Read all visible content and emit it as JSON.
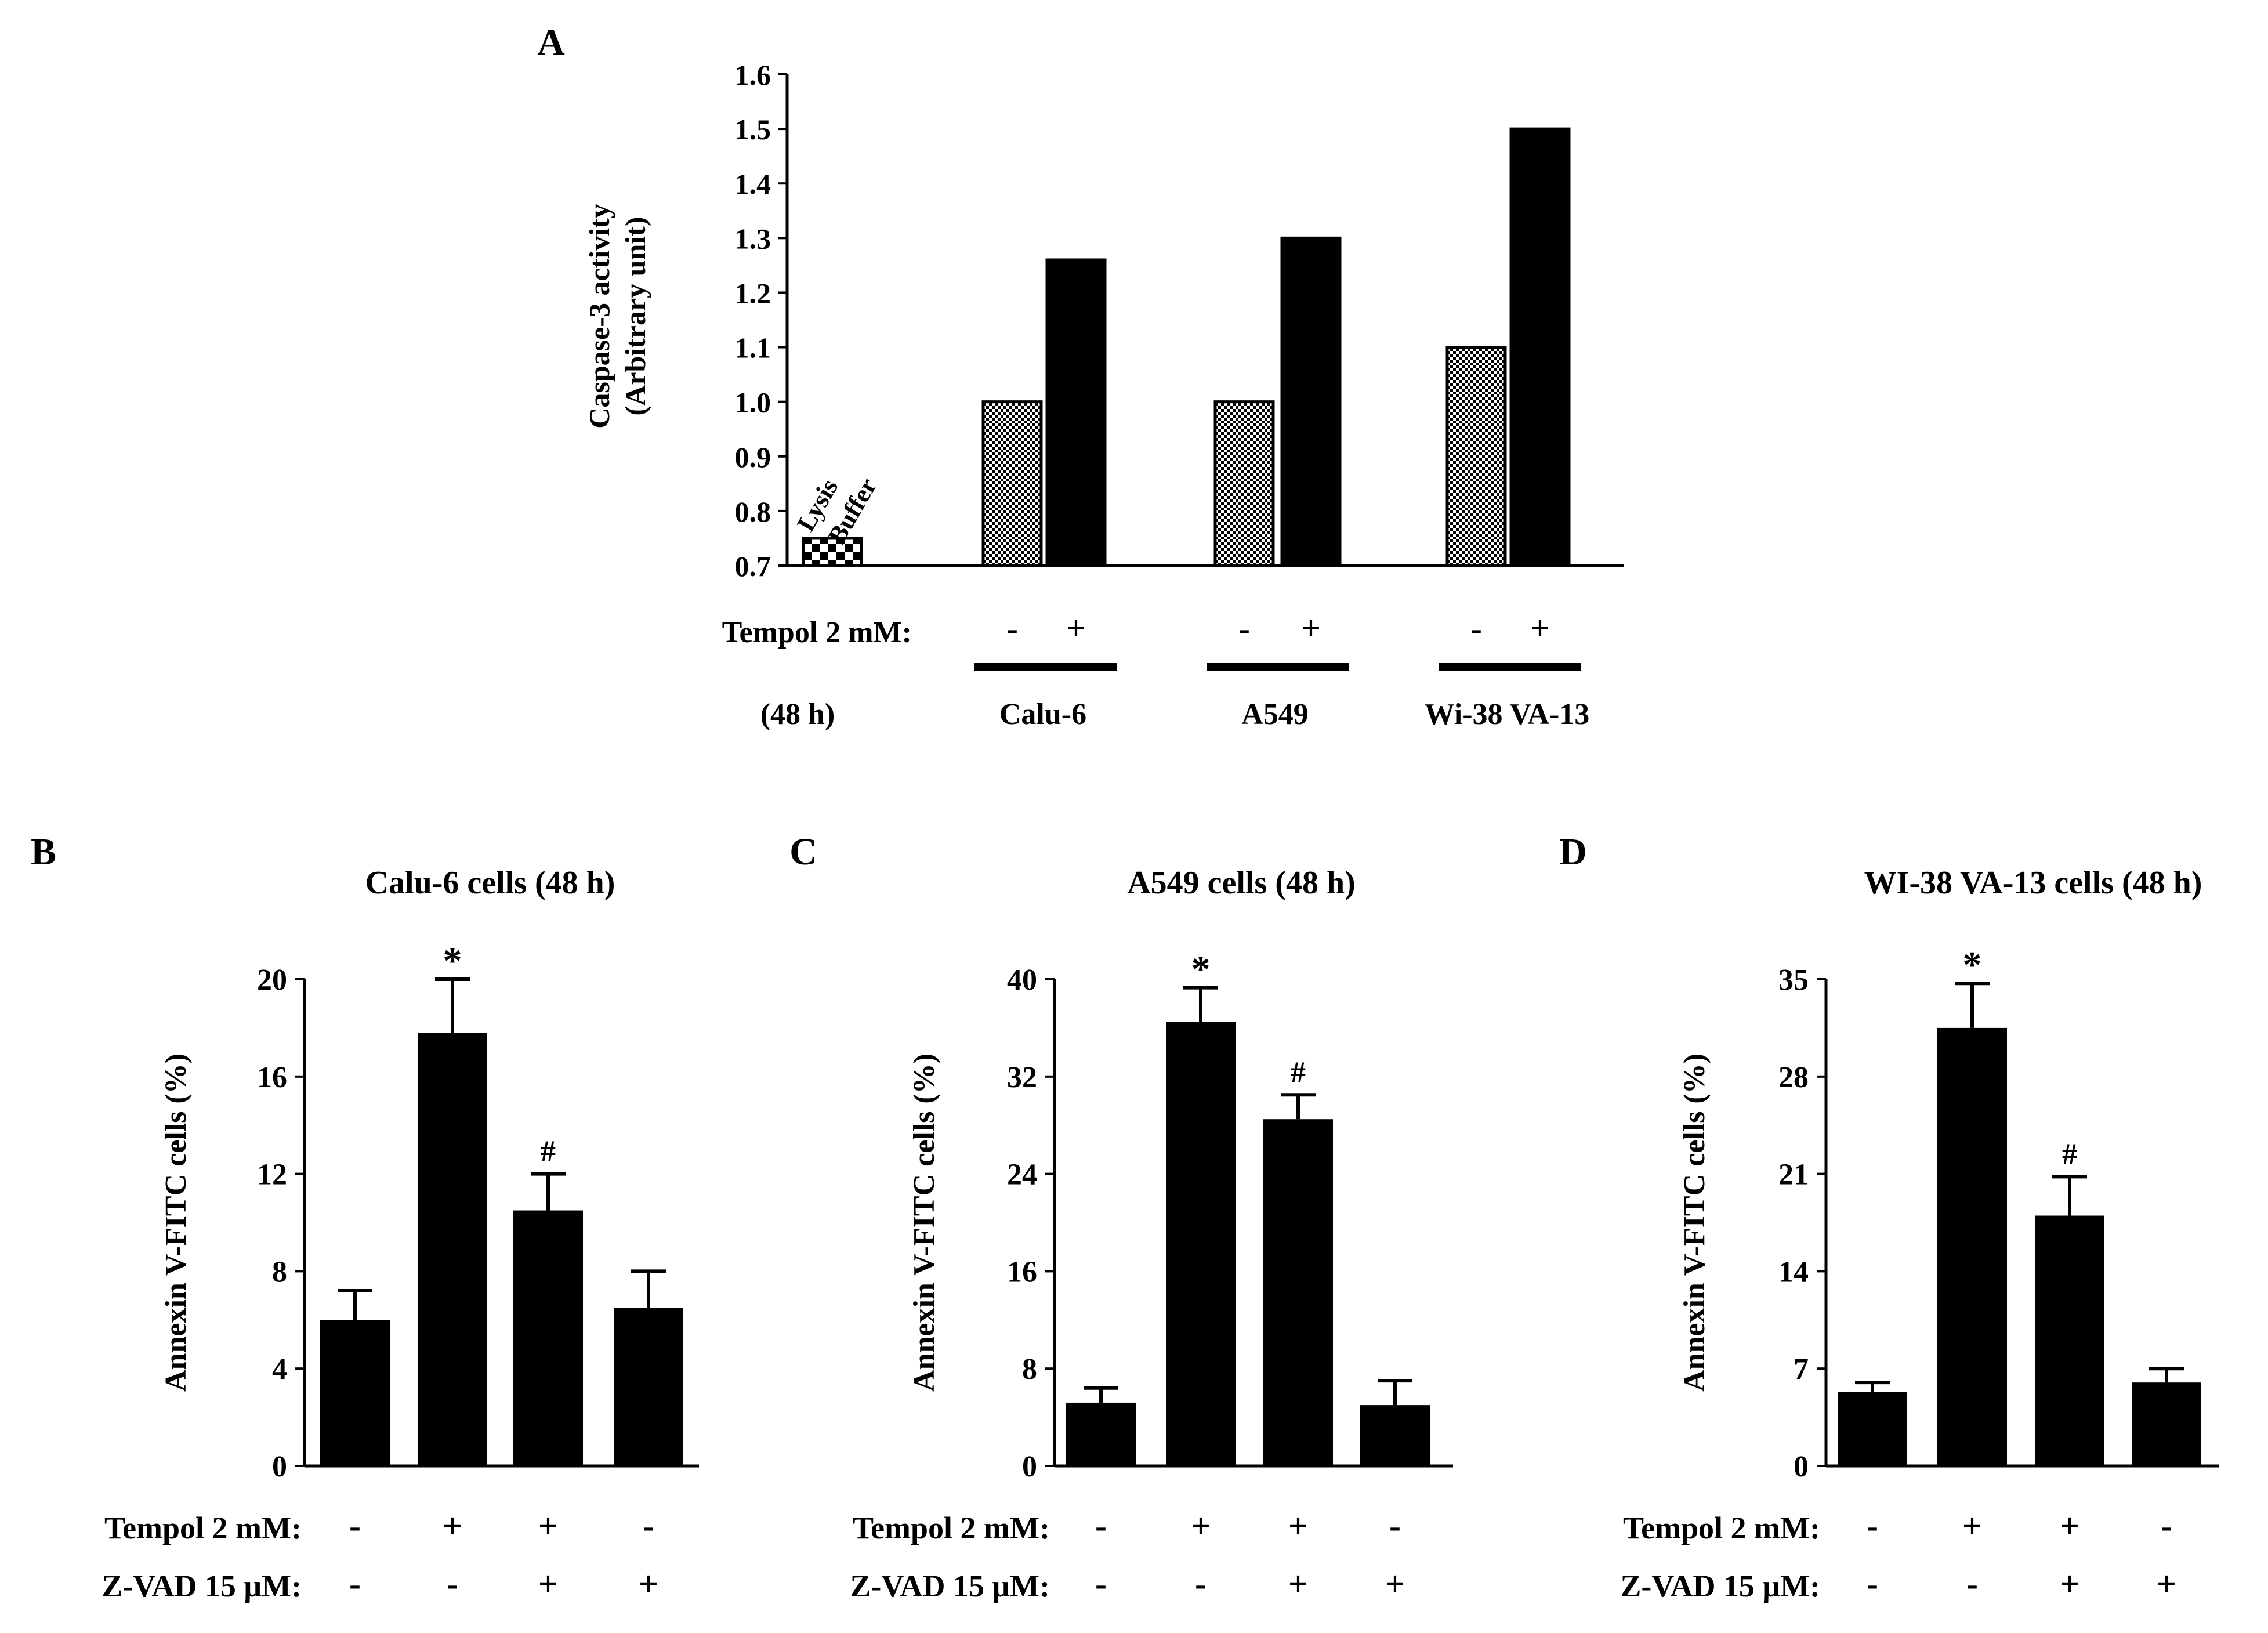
{
  "colors": {
    "bar": "#000000",
    "pattern_light": "#ffffff",
    "text": "#000000"
  },
  "chart_data": [
    {
      "id": "A",
      "panel_label": "A",
      "type": "bar",
      "title": "",
      "ylabel_lines": [
        "Caspase-3 activity",
        "(Arbitrary unit)"
      ],
      "ylim": [
        0.7,
        1.6
      ],
      "yticks": [
        "0.7",
        "0.8",
        "0.9",
        "1.0",
        "1.1",
        "1.2",
        "1.3",
        "1.4",
        "1.5",
        "1.6"
      ],
      "bar_label_lines": [
        "Lysis",
        "Buffer"
      ],
      "bars": [
        {
          "group": "Lysis Buffer",
          "tempol": "",
          "value": 0.75,
          "pattern": "checker"
        },
        {
          "group": "Calu-6",
          "tempol": "-",
          "value": 1.0,
          "pattern": "dots"
        },
        {
          "group": "Calu-6",
          "tempol": "+",
          "value": 1.26,
          "pattern": "solid"
        },
        {
          "group": "A549",
          "tempol": "-",
          "value": 1.0,
          "pattern": "dots"
        },
        {
          "group": "A549",
          "tempol": "+",
          "value": 1.3,
          "pattern": "solid"
        },
        {
          "group": "Wi-38 VA-13",
          "tempol": "-",
          "value": 1.1,
          "pattern": "dots"
        },
        {
          "group": "Wi-38 VA-13",
          "tempol": "+",
          "value": 1.5,
          "pattern": "solid"
        }
      ],
      "treatment_label": "Tempol 2 mM:",
      "time_label": "(48 h)",
      "groups": [
        "Calu-6",
        "A549",
        "Wi-38 VA-13"
      ]
    },
    {
      "id": "B",
      "panel_label": "B",
      "type": "bar",
      "title": "Calu-6 cells (48 h)",
      "ylabel": "Annexin V-FITC cells (%)",
      "ylim": [
        0,
        20
      ],
      "yticks": [
        "0",
        "4",
        "8",
        "12",
        "16",
        "20"
      ],
      "values": [
        6.0,
        17.8,
        10.5,
        6.5
      ],
      "errors": [
        1.2,
        2.2,
        1.5,
        1.5
      ],
      "annotations": [
        "",
        "*",
        "#",
        ""
      ],
      "tempol_label": "Tempol 2 mM:",
      "tempol": [
        "-",
        "+",
        "+",
        "-"
      ],
      "zvad_label": "Z-VAD  15 μM:",
      "zvad": [
        "-",
        "-",
        "+",
        "+"
      ]
    },
    {
      "id": "C",
      "panel_label": "C",
      "type": "bar",
      "title": "A549 cells (48 h)",
      "ylabel": "Annexin V-FITC cells (%)",
      "ylim": [
        0,
        40
      ],
      "yticks": [
        "0",
        "8",
        "16",
        "24",
        "32",
        "40"
      ],
      "values": [
        5.2,
        36.5,
        28.5,
        5.0
      ],
      "errors": [
        1.2,
        2.8,
        2.0,
        2.0
      ],
      "annotations": [
        "",
        "*",
        "#",
        ""
      ],
      "tempol_label": "Tempol 2 mM:",
      "tempol": [
        "-",
        "+",
        "+",
        "-"
      ],
      "zvad_label": "Z-VAD  15 μM:",
      "zvad": [
        "-",
        "-",
        "+",
        "+"
      ]
    },
    {
      "id": "D",
      "panel_label": "D",
      "type": "bar",
      "title": "WI-38 VA-13 cells (48 h)",
      "ylabel": "Annexin V-FITC cells (%)",
      "ylim": [
        0,
        35
      ],
      "yticks": [
        "0",
        "7",
        "14",
        "21",
        "28",
        "35"
      ],
      "values": [
        5.3,
        31.5,
        18.0,
        6.0
      ],
      "errors": [
        0.7,
        3.2,
        2.8,
        1.0
      ],
      "annotations": [
        "",
        "*",
        "#",
        ""
      ],
      "tempol_label": "Tempol 2 mM:",
      "tempol": [
        "-",
        "+",
        "+",
        "-"
      ],
      "zvad_label": "Z-VAD  15 μM:",
      "zvad": [
        "-",
        "-",
        "+",
        "+"
      ]
    }
  ]
}
